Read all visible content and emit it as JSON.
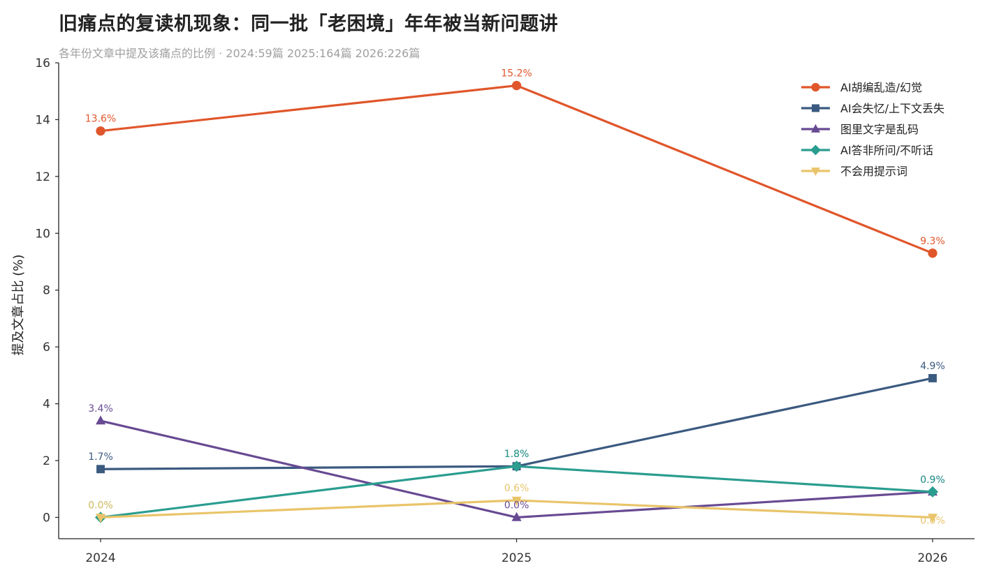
{
  "chart_data": {
    "type": "line",
    "title": "旧痛点的复读机现象：同一批「老困境」年年被当新问题讲",
    "subtitle": "各年份文章中提及该痛点的比例 · 2024:59篇 2025:164篇 2026:226篇",
    "ylabel": "提及文章占比 (%)",
    "xlabel": "",
    "x": [
      "2024",
      "2025",
      "2026"
    ],
    "ylim": [
      -0.75,
      16
    ],
    "yticks": [
      0,
      2,
      4,
      6,
      8,
      10,
      12,
      14,
      16
    ],
    "grid": false,
    "legend_position": "top-right",
    "series": [
      {
        "name": "AI胡编乱造/幻觉",
        "color": "#e0562b",
        "marker": "circle",
        "values": [
          13.6,
          15.2,
          9.3
        ],
        "labels": [
          "13.6%",
          "15.2%",
          "9.3%"
        ]
      },
      {
        "name": "AI会失忆/上下文丢失",
        "color": "#3b5a80",
        "marker": "square",
        "values": [
          1.7,
          1.8,
          4.9
        ],
        "labels": [
          "1.7%",
          "1.8%",
          "4.9%"
        ]
      },
      {
        "name": "图里文字是乱码",
        "color": "#684a93",
        "marker": "triangle-up",
        "values": [
          3.4,
          0.0,
          0.9
        ],
        "labels": [
          "3.4%",
          "0.0%",
          "0.9%"
        ]
      },
      {
        "name": "AI答非所问/不听话",
        "color": "#2a9d8f",
        "marker": "diamond",
        "values": [
          0.0,
          1.8,
          0.9
        ],
        "labels": [
          "0.0%",
          "1.8%",
          "0.9%"
        ]
      },
      {
        "name": "不会用提示词",
        "color": "#e9c46a",
        "marker": "triangle-down",
        "values": [
          0.0,
          0.6,
          0.0
        ],
        "labels": [
          "0.0%",
          "0.6%",
          "0.0%"
        ]
      }
    ]
  }
}
